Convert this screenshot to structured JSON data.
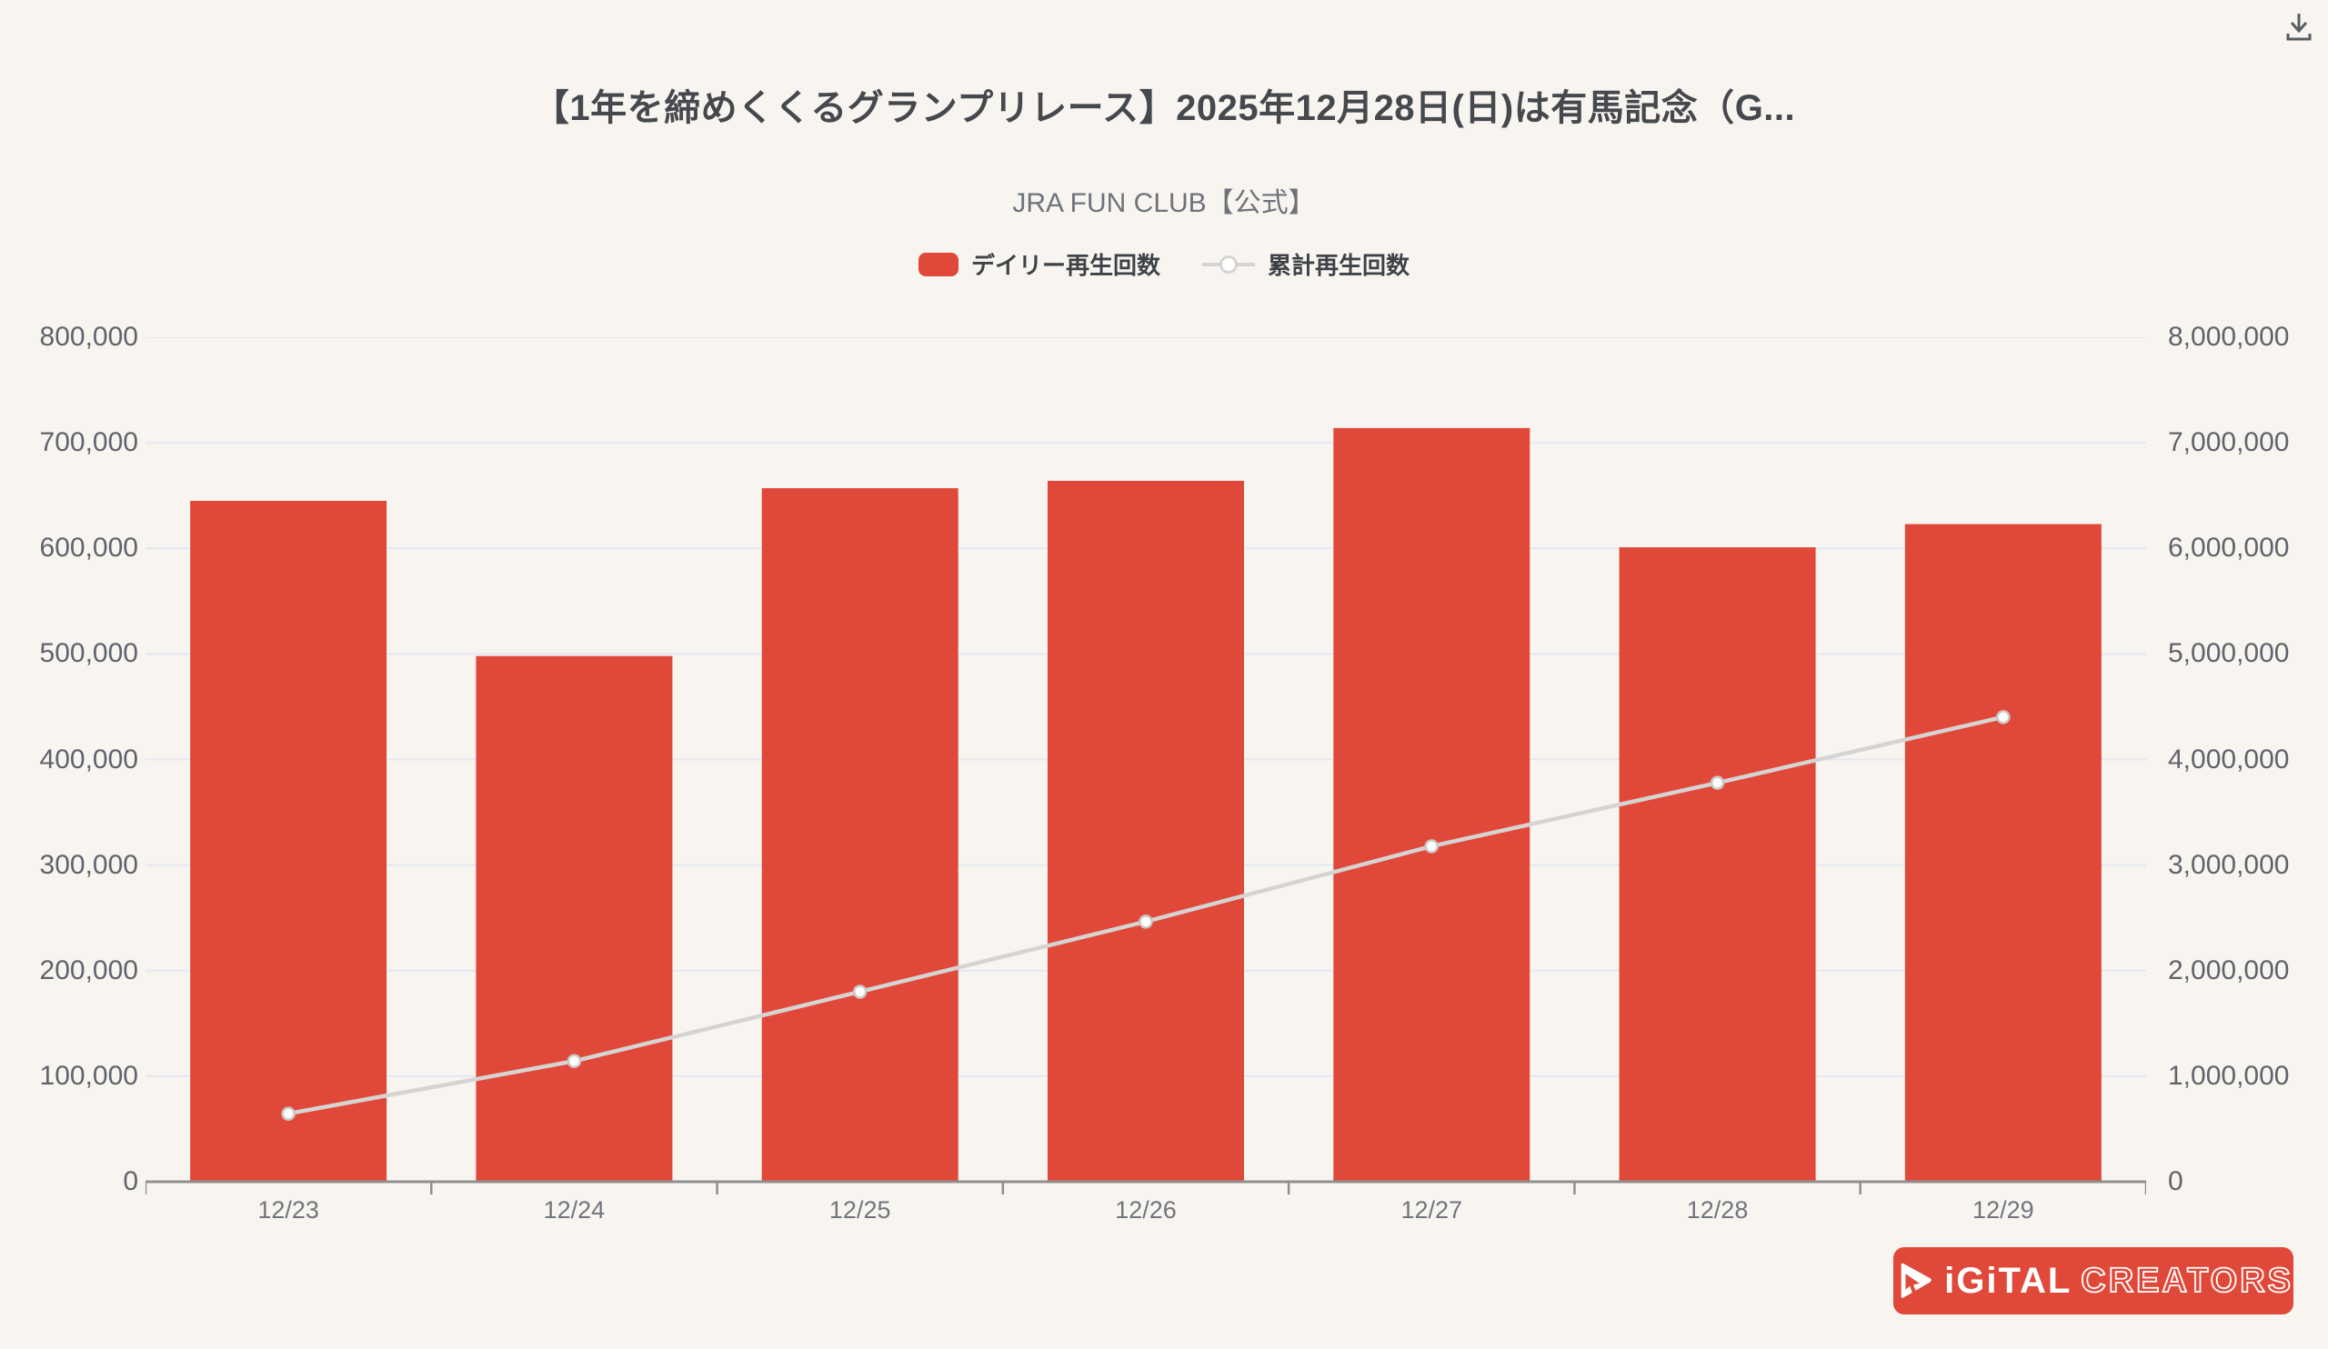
{
  "page": {
    "background": "#f8f5f1"
  },
  "header": {
    "title": "【1年を締めくくるグランプリレース】2025年12月28日(日)は有馬記念（G...",
    "channel": "JRA FUN CLUB【公式】"
  },
  "legend": {
    "items": [
      {
        "label": "デイリー再生回数",
        "marker": "bar-swatch",
        "color": "#e0493a"
      },
      {
        "label": "累計再生回数",
        "marker": "line-open-circle",
        "color": "#d6d4d2"
      }
    ]
  },
  "icons": {
    "download": "download-arrow-to-tray",
    "logo_icon": "play-cursor-triangle"
  },
  "branding": {
    "logo_text_solid": "iGiTAL",
    "logo_text_outline": "CREATORS",
    "logo_bg": "#e0493a"
  },
  "chart_data": {
    "type": "bar",
    "subtype": "bar+line dual-axis combo",
    "categories": [
      "12/23",
      "12/24",
      "12/25",
      "12/26",
      "12/27",
      "12/28",
      "12/29"
    ],
    "series": [
      {
        "name": "デイリー再生回数",
        "type": "bar",
        "yaxis": "left",
        "color": "#e0493a",
        "values": [
          645000,
          498000,
          657000,
          664000,
          714000,
          601000,
          623000
        ]
      },
      {
        "name": "累計再生回数",
        "type": "line",
        "yaxis": "right",
        "color": "#d6d4d2",
        "marker": "open-circle",
        "values": [
          645000,
          1143000,
          1800000,
          2464000,
          3178000,
          3779000,
          4402000
        ]
      }
    ],
    "left_axis": {
      "range": [
        0,
        800000
      ],
      "tick_step": 100000,
      "tick_labels": [
        "0",
        "100,000",
        "200,000",
        "300,000",
        "400,000",
        "500,000",
        "600,000",
        "700,000",
        "800,000"
      ]
    },
    "right_axis": {
      "range": [
        0,
        8000000
      ],
      "tick_step": 1000000,
      "tick_labels": [
        "0",
        "1,000,000",
        "2,000,000",
        "3,000,000",
        "4,000,000",
        "5,000,000",
        "6,000,000",
        "7,000,000",
        "8,000,000"
      ]
    },
    "grid": {
      "horizontal": true,
      "vertical": false,
      "color": "#e3e7f1"
    },
    "axis_line_color": "#8f8f8f",
    "legend_position": "top",
    "title": "【1年を締めくくるグランプリレース】2025年12月28日(日)は有馬記念（G...",
    "xlabel": "",
    "ylabel": ""
  }
}
